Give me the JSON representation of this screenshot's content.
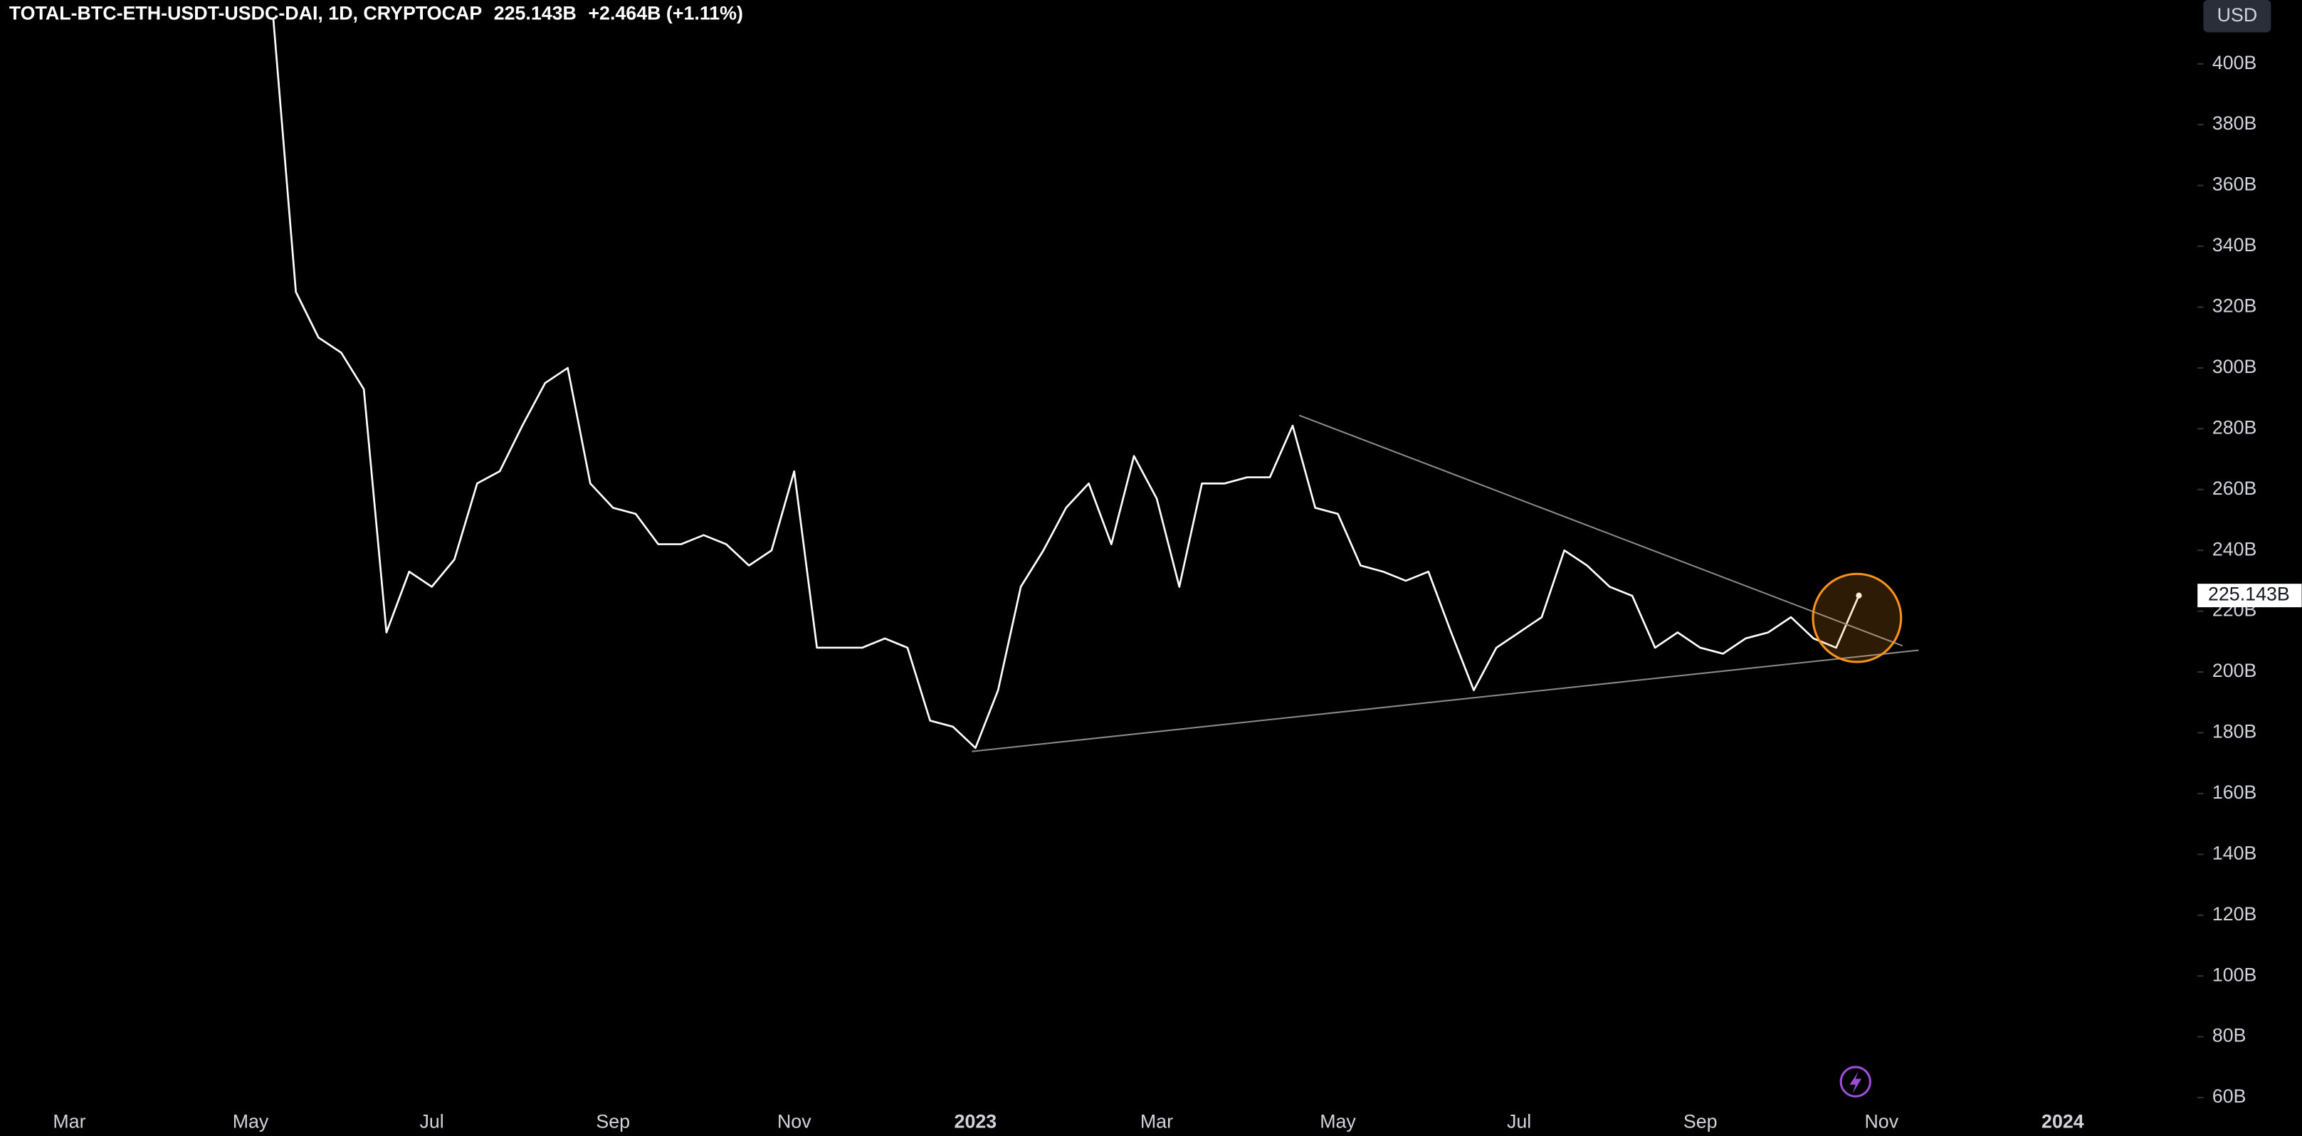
{
  "header": {
    "symbol": "TOTAL-BTC-ETH-USDT-USDC-DAI, 1D, CRYPTOCAP",
    "price": "225.143B",
    "change": "+2.464B (+1.11%)",
    "currency": "USD"
  },
  "chart_data": {
    "type": "line",
    "color": "#ffffff",
    "categories": [
      null,
      null,
      null,
      "Mar",
      null,
      null,
      null,
      null,
      null,
      null,
      null,
      "May",
      null,
      null,
      null,
      null,
      null,
      null,
      null,
      "Jul",
      null,
      null,
      null,
      null,
      null,
      null,
      null,
      "Sep",
      null,
      null,
      null,
      null,
      null,
      null,
      null,
      "Nov",
      null,
      null,
      null,
      null,
      null,
      null,
      null,
      "2023",
      null,
      null,
      null,
      null,
      null,
      null,
      null,
      "Mar",
      null,
      null,
      null,
      null,
      null,
      null,
      null,
      "May",
      null,
      null,
      null,
      null,
      null,
      null,
      null,
      "Jul",
      null,
      null,
      null,
      null,
      null,
      null,
      null,
      "Sep",
      null,
      null,
      null,
      null,
      null,
      null,
      null,
      "Nov",
      null,
      null,
      null,
      null,
      null,
      null,
      null,
      "2024",
      null,
      null,
      null,
      null,
      null
    ],
    "values": [
      null,
      null,
      null,
      null,
      null,
      null,
      null,
      null,
      null,
      null,
      null,
      null,
      415,
      325,
      310,
      305,
      293,
      213,
      233,
      228,
      237,
      262,
      266,
      281,
      295,
      300,
      262,
      254,
      252,
      242,
      242,
      245,
      242,
      235,
      240,
      266,
      208,
      208,
      208,
      211,
      208,
      184,
      182,
      175,
      194,
      228,
      240,
      254,
      262,
      242,
      271,
      257,
      228,
      262,
      262,
      264,
      264,
      281,
      254,
      252,
      235,
      233,
      230,
      233,
      213,
      194,
      208,
      213,
      218,
      240,
      235,
      228,
      225,
      208,
      213,
      208,
      206,
      211,
      213,
      218,
      211,
      208,
      225.143,
      null,
      null,
      null,
      null,
      null,
      null,
      null,
      null,
      null,
      null,
      null,
      null,
      null,
      null
    ],
    "ylim": [
      58,
      421
    ],
    "yticks": [
      {
        "value": 60,
        "label": "60B"
      },
      {
        "value": 80,
        "label": "80B"
      },
      {
        "value": 100,
        "label": "100B"
      },
      {
        "value": 120,
        "label": "120B"
      },
      {
        "value": 140,
        "label": "140B"
      },
      {
        "value": 160,
        "label": "160B"
      },
      {
        "value": 180,
        "label": "180B"
      },
      {
        "value": 200,
        "label": "200B"
      },
      {
        "value": 220,
        "label": "220B"
      },
      {
        "value": 240,
        "label": "240B"
      },
      {
        "value": 260,
        "label": "260B"
      },
      {
        "value": 280,
        "label": "280B"
      },
      {
        "value": 300,
        "label": "300B"
      },
      {
        "value": 320,
        "label": "320B"
      },
      {
        "value": 340,
        "label": "340B"
      },
      {
        "value": 360,
        "label": "360B"
      },
      {
        "value": 380,
        "label": "380B"
      },
      {
        "value": 400,
        "label": "400B"
      }
    ]
  }
}
